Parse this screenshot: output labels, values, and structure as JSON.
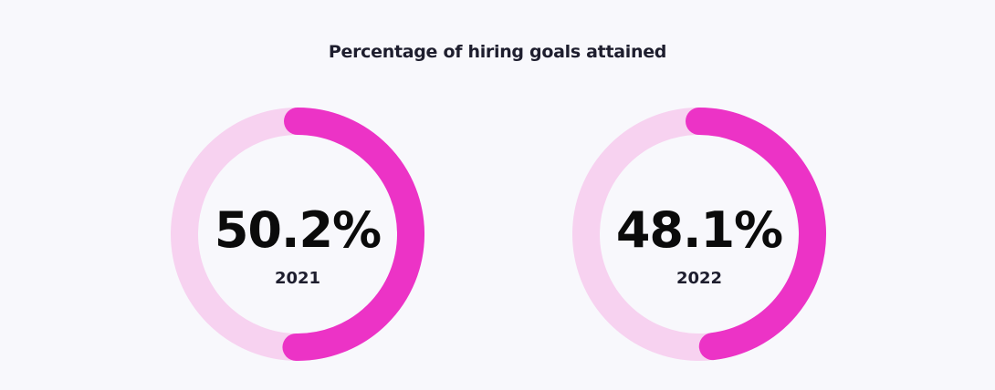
{
  "chart_data": {
    "type": "donut",
    "title": "Percentage of hiring goals attained",
    "series": [
      {
        "label": "2021",
        "value": 50.2,
        "display": "50.2%"
      },
      {
        "label": "2022",
        "value": 48.1,
        "display": "48.1%"
      }
    ],
    "max": 100,
    "colors": {
      "filled": "#ec33c6",
      "track": "#f7d2f0"
    }
  }
}
